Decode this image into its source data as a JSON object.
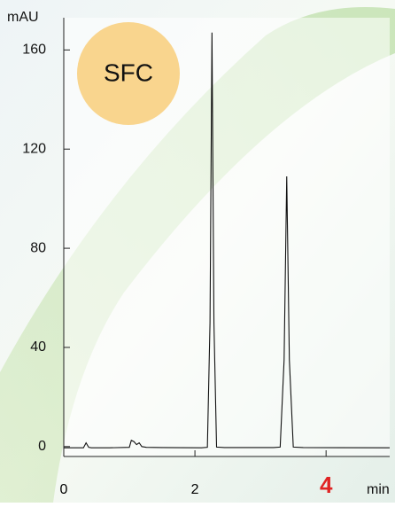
{
  "chart_data": {
    "type": "line",
    "y_label": "mAU",
    "x_label": "min",
    "annotation": "SFC",
    "annotation_color": "#f9d58e",
    "series": [
      {
        "color": "#111111",
        "x": [
          0,
          0.3,
          0.34,
          0.38,
          0.42,
          0.7,
          1.0,
          1.03,
          1.07,
          1.11,
          1.15,
          1.19,
          1.26,
          1.5,
          2.1,
          2.19,
          2.23,
          2.26,
          2.29,
          2.33,
          2.45,
          3.2,
          3.3,
          3.36,
          3.4,
          3.44,
          3.5,
          3.65,
          4.97
        ],
        "values": [
          -0.5,
          -0.5,
          1.5,
          -0.3,
          -0.5,
          -0.5,
          -0.3,
          2.5,
          2,
          0.8,
          1.5,
          0,
          -0.3,
          -0.4,
          -0.5,
          -0.3,
          50,
          167,
          50,
          -0.2,
          -0.4,
          -0.4,
          -0.2,
          35,
          109,
          35,
          -0.2,
          -0.4,
          -0.5
        ]
      }
    ],
    "xlim": [
      0,
      4.97
    ],
    "ylim": [
      -4,
      173
    ],
    "xticks": [
      0,
      2,
      4
    ],
    "yticks": [
      0,
      40,
      80,
      120,
      160
    ],
    "xtick_label_colors": [
      "#000000",
      "#000000",
      "#e02424"
    ]
  }
}
